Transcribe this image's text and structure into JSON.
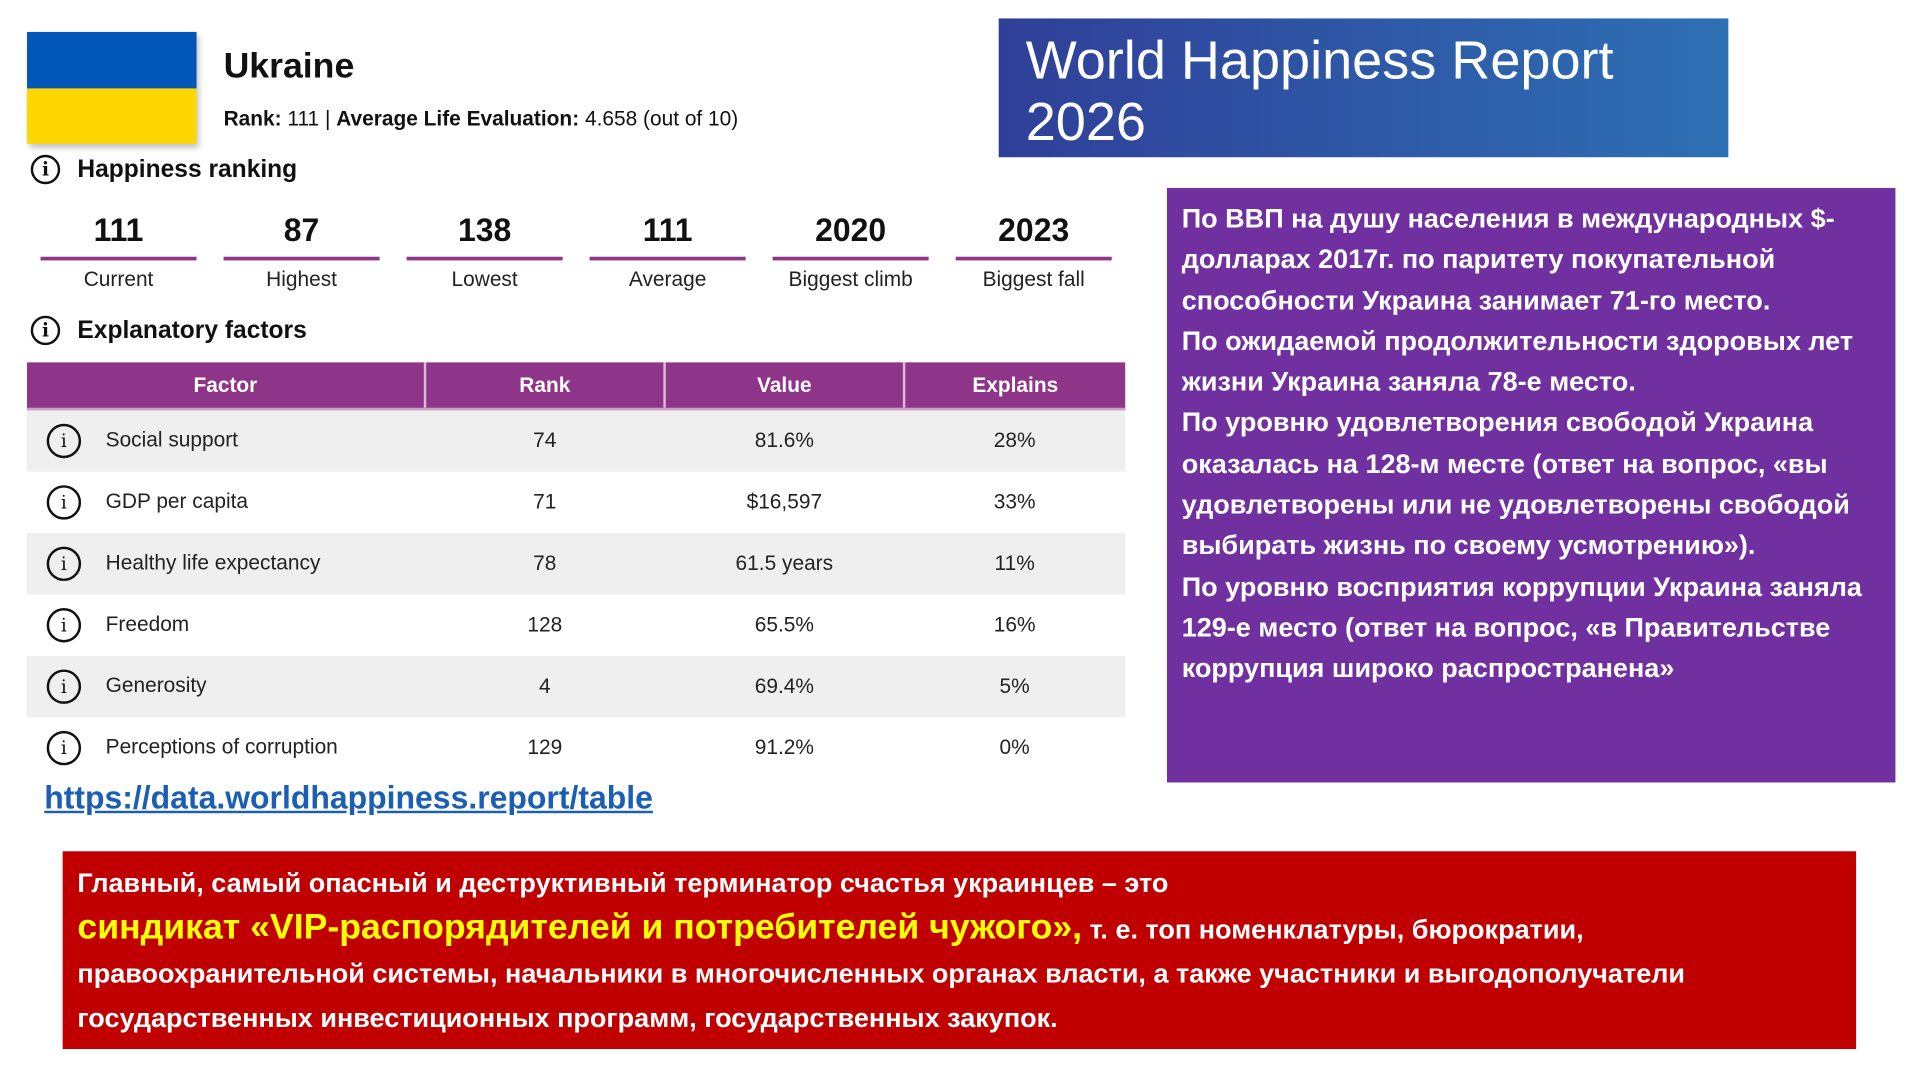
{
  "country": {
    "name": "Ukraine",
    "rank_label": "Rank:",
    "rank": "111",
    "sep": "|",
    "avg_label": "Average Life Evaluation:",
    "avg_value": "4.658 (out of 10)",
    "flag_colors": [
      "#0057b8",
      "#ffd700"
    ]
  },
  "happiness_ranking": {
    "title": "Happiness ranking",
    "stats": [
      {
        "value": "111",
        "label": "Current"
      },
      {
        "value": "87",
        "label": "Highest"
      },
      {
        "value": "138",
        "label": "Lowest"
      },
      {
        "value": "111",
        "label": "Average"
      },
      {
        "value": "2020",
        "label": "Biggest climb"
      },
      {
        "value": "2023",
        "label": "Biggest fall"
      }
    ]
  },
  "factors": {
    "title": "Explanatory factors",
    "headers": [
      "Factor",
      "Rank",
      "Value",
      "Explains"
    ],
    "rows": [
      {
        "factor": "Social support",
        "rank": "74",
        "value": "81.6%",
        "explains": "28%"
      },
      {
        "factor": "GDP per capita",
        "rank": "71",
        "value": "$16,597",
        "explains": "33%"
      },
      {
        "factor": "Healthy life expectancy",
        "rank": "78",
        "value": "61.5 years",
        "explains": "11%"
      },
      {
        "factor": "Freedom",
        "rank": "128",
        "value": "65.5%",
        "explains": "16%"
      },
      {
        "factor": "Generosity",
        "rank": "4",
        "value": "69.4%",
        "explains": "5%"
      },
      {
        "factor": "Perceptions of corruption",
        "rank": "129",
        "value": "91.2%",
        "explains": "0%"
      }
    ]
  },
  "link": "https://data.worldhappiness.report/table",
  "banner": {
    "line1": "World Happiness Report",
    "line2": "2026"
  },
  "purple_note": [
    "По ВВП на душу населения в международных $-долларах 2017г. по паритету покупательной способности Украина занимает 71-го место.",
    "По ожидаемой продолжительности здоровых лет жизни Украина заняла 78-е место.",
    "По уровню удовлетворения свободой Украина оказалась на 128-м месте (ответ на вопрос, «вы удовлетворены или не удовлетворены свободой выбирать жизнь по своему усмотрению»).",
    "По уровню восприятия коррупции Украина заняла 129-е место (ответ на вопрос, «в Правительстве коррупция широко распространена»"
  ],
  "red_note": {
    "line1": "Главный, самый опасный и деструктивный терминатор счастья украинцев – это",
    "highlight": "синдикат «VIP-распорядителей и потребителей чужого»,",
    "rest": " т. е. топ номенклатуры, бюрократии, правоохранительной системы, начальники в многочисленных органах власти, а также участники и выгодополучатели государственных инвестиционных программ, государственных закупок."
  }
}
